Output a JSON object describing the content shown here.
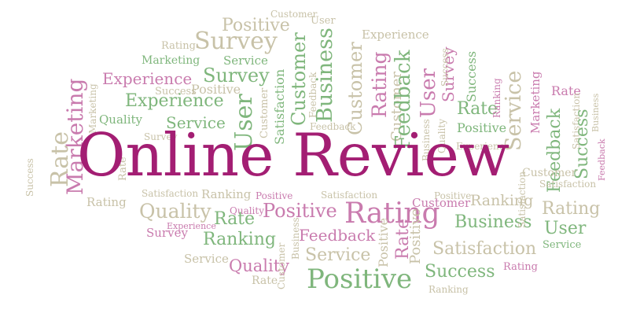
{
  "title": "Online Review",
  "words": {
    "positive": "Positive",
    "survey": "Survey",
    "customer": "Customer",
    "business": "Business",
    "experience": "Experience",
    "rating": "Rating",
    "marketing": "Marketing",
    "service": "Service",
    "success": "Success",
    "satisfaction": "Satisfaction",
    "user": "User",
    "feedback": "Feedback",
    "quality": "Quality",
    "rate": "Rate",
    "ranking": "Ranking"
  },
  "colors": {
    "magenta": "#a31e73",
    "pink": "#c97bae",
    "green": "#7fb67c",
    "tan": "#c8c2a8"
  }
}
